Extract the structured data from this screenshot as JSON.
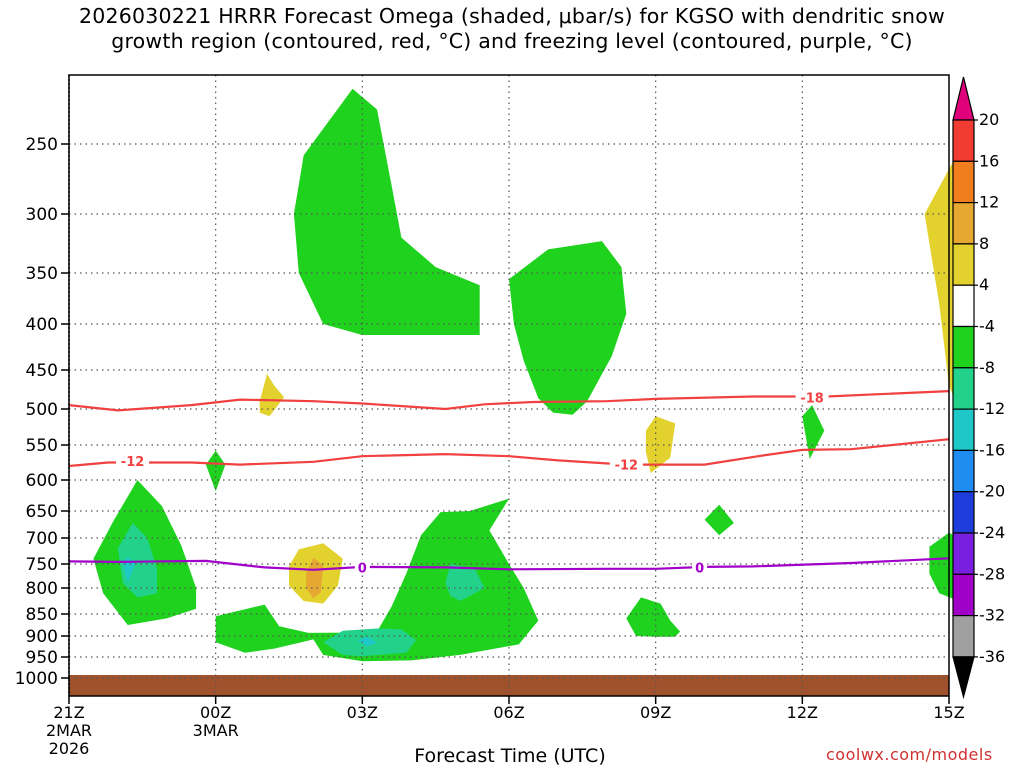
{
  "chart_data": {
    "type": "contour",
    "title_line1": "2026030221 HRRR Forecast Omega (shaded, μbar/s) for KGSO with dendritic snow",
    "title_line2": "growth region (contoured, red, °C) and freezing level (contoured, purple, °C)",
    "xlabel": "Forecast Time (UTC)",
    "credit": "coolwx.com/models",
    "x_ticks": [
      {
        "label": "21Z",
        "sub1": "2MAR",
        "sub2": "2026",
        "hour": 0
      },
      {
        "label": "00Z",
        "sub1": "3MAR",
        "sub2": "",
        "hour": 3
      },
      {
        "label": "03Z",
        "sub1": "",
        "sub2": "",
        "hour": 6
      },
      {
        "label": "06Z",
        "sub1": "",
        "sub2": "",
        "hour": 9
      },
      {
        "label": "09Z",
        "sub1": "",
        "sub2": "",
        "hour": 12
      },
      {
        "label": "12Z",
        "sub1": "",
        "sub2": "",
        "hour": 15
      },
      {
        "label": "15Z",
        "sub1": "",
        "sub2": "",
        "hour": 18
      }
    ],
    "y_ticks": [
      "250",
      "300",
      "350",
      "400",
      "450",
      "500",
      "550",
      "600",
      "650",
      "700",
      "750",
      "800",
      "850",
      "900",
      "950",
      "1000"
    ],
    "y_values": [
      250,
      300,
      350,
      400,
      450,
      500,
      550,
      600,
      650,
      700,
      750,
      800,
      850,
      900,
      950,
      1000
    ],
    "y_range_hpa": [
      200,
      1000
    ],
    "colorbar": {
      "labels": [
        "20",
        "16",
        "12",
        "8",
        "4",
        "-4",
        "-8",
        "-12",
        "-16",
        "-20",
        "-24",
        "-28",
        "-32",
        "-36"
      ],
      "bins": [
        {
          "lo": 20,
          "hi": null,
          "color": "#e0007a"
        },
        {
          "lo": 16,
          "hi": 20,
          "color": "#f03c32"
        },
        {
          "lo": 12,
          "hi": 16,
          "color": "#f07d1e"
        },
        {
          "lo": 8,
          "hi": 12,
          "color": "#e6a830"
        },
        {
          "lo": 4,
          "hi": 8,
          "color": "#e3d22e"
        },
        {
          "lo": -4,
          "hi": 4,
          "color": "#ffffff"
        },
        {
          "lo": -8,
          "hi": -4,
          "color": "#1ed21e"
        },
        {
          "lo": -12,
          "hi": -8,
          "color": "#22d28a"
        },
        {
          "lo": -16,
          "hi": -12,
          "color": "#1ec8c8"
        },
        {
          "lo": -20,
          "hi": -16,
          "color": "#1e8cf0"
        },
        {
          "lo": -24,
          "hi": -20,
          "color": "#1e3cdc"
        },
        {
          "lo": -28,
          "hi": -24,
          "color": "#7a1ee0"
        },
        {
          "lo": -32,
          "hi": -28,
          "color": "#a000c8"
        },
        {
          "lo": -36,
          "hi": -32,
          "color": "#a0a0a0"
        },
        {
          "lo": null,
          "hi": -36,
          "color": "#000000"
        }
      ]
    },
    "contours": [
      {
        "name": "dendritic -18C",
        "color": "#f04040",
        "label": "-18",
        "points": [
          [
            0,
            495
          ],
          [
            1,
            502
          ],
          [
            2.5,
            495
          ],
          [
            3.5,
            488
          ],
          [
            5,
            490
          ],
          [
            6,
            493
          ],
          [
            7.7,
            500
          ],
          [
            8.5,
            494
          ],
          [
            9.5,
            491
          ],
          [
            11,
            490
          ],
          [
            12,
            487
          ],
          [
            14,
            484
          ],
          [
            15.5,
            484
          ],
          [
            18,
            477
          ]
        ]
      },
      {
        "name": "dendritic -12C",
        "color": "#f04040",
        "label": "-12",
        "points": [
          [
            0,
            580
          ],
          [
            0.8,
            575
          ],
          [
            2.5,
            575
          ],
          [
            3.5,
            578
          ],
          [
            5,
            574
          ],
          [
            6,
            566
          ],
          [
            7.7,
            563
          ],
          [
            9,
            566
          ],
          [
            10,
            572
          ],
          [
            11.4,
            578
          ],
          [
            13,
            578
          ],
          [
            14,
            567
          ],
          [
            15,
            557
          ],
          [
            16,
            556
          ],
          [
            18,
            542
          ]
        ]
      },
      {
        "name": "freezing level 0C",
        "color": "#a000c8",
        "label": "0",
        "points": [
          [
            0,
            745
          ],
          [
            1,
            746
          ],
          [
            2.8,
            744
          ],
          [
            4,
            757
          ],
          [
            5,
            762
          ],
          [
            6,
            756
          ],
          [
            7.7,
            757
          ],
          [
            9,
            761
          ],
          [
            11,
            760
          ],
          [
            12,
            760
          ],
          [
            13,
            756
          ],
          [
            14,
            755
          ],
          [
            16,
            748
          ],
          [
            18,
            739
          ]
        ]
      }
    ],
    "contour_labels": [
      {
        "text": "-18",
        "hour": 15.2,
        "p": 485,
        "color": "#f04040"
      },
      {
        "text": "-12",
        "hour": 1.3,
        "p": 573,
        "color": "#f04040"
      },
      {
        "text": "-12",
        "hour": 11.4,
        "p": 578,
        "color": "#f04040"
      },
      {
        "text": "0",
        "hour": 6.0,
        "p": 757,
        "color": "#a000c8"
      },
      {
        "text": "0",
        "hour": 12.9,
        "p": 757,
        "color": "#a000c8"
      }
    ],
    "omega_regions": [
      {
        "color": "#1ed21e",
        "points": [
          [
            4.8,
            258
          ],
          [
            5.8,
            210
          ],
          [
            6.3,
            225
          ],
          [
            6.6,
            280
          ],
          [
            6.8,
            320
          ],
          [
            7.5,
            345
          ],
          [
            8.4,
            362
          ],
          [
            8.4,
            412
          ],
          [
            6.0,
            412
          ],
          [
            5.2,
            400
          ],
          [
            4.7,
            350
          ],
          [
            4.6,
            300
          ]
        ]
      },
      {
        "color": "#1ed21e",
        "points": [
          [
            9.0,
            356
          ],
          [
            9.8,
            330
          ],
          [
            10.9,
            323
          ],
          [
            11.3,
            345
          ],
          [
            11.4,
            390
          ],
          [
            11.1,
            435
          ],
          [
            10.6,
            490
          ],
          [
            10.3,
            508
          ],
          [
            9.9,
            505
          ],
          [
            9.6,
            486
          ],
          [
            9.3,
            440
          ],
          [
            9.1,
            400
          ]
        ]
      },
      {
        "color": "#1ed21e",
        "points": [
          [
            2.8,
            578
          ],
          [
            3.0,
            558
          ],
          [
            3.2,
            578
          ],
          [
            3.0,
            618
          ]
        ]
      },
      {
        "color": "#1ed21e",
        "points": [
          [
            15.0,
            510
          ],
          [
            15.2,
            495
          ],
          [
            15.45,
            530
          ],
          [
            15.15,
            570
          ]
        ]
      },
      {
        "color": "#1ed21e",
        "points": [
          [
            13.0,
            666
          ],
          [
            13.3,
            640
          ],
          [
            13.6,
            672
          ],
          [
            13.3,
            695
          ]
        ]
      },
      {
        "color": "#1ed21e",
        "points": [
          [
            0.9,
            670
          ],
          [
            1.4,
            600
          ],
          [
            1.9,
            642
          ],
          [
            2.3,
            715
          ],
          [
            2.6,
            800
          ],
          [
            2.6,
            840
          ],
          [
            2.0,
            860
          ],
          [
            1.2,
            875
          ],
          [
            0.7,
            810
          ],
          [
            0.5,
            740
          ]
        ]
      },
      {
        "color": "#22d28a",
        "points": [
          [
            1.0,
            720
          ],
          [
            1.3,
            672
          ],
          [
            1.6,
            700
          ],
          [
            1.8,
            760
          ],
          [
            1.8,
            810
          ],
          [
            1.4,
            818
          ],
          [
            1.1,
            790
          ]
        ]
      },
      {
        "color": "#1ec8c8",
        "points": [
          [
            1.1,
            748
          ],
          [
            1.2,
            735
          ],
          [
            1.35,
            750
          ],
          [
            1.2,
            790
          ]
        ]
      },
      {
        "color": "#1ed21e",
        "points": [
          [
            3.0,
            855
          ],
          [
            4.0,
            832
          ],
          [
            4.3,
            878
          ],
          [
            4.9,
            893
          ],
          [
            6.0,
            892
          ],
          [
            6.3,
            890
          ],
          [
            6.6,
            835
          ],
          [
            6.9,
            770
          ],
          [
            7.2,
            695
          ],
          [
            7.6,
            652
          ],
          [
            8.2,
            650
          ],
          [
            9.0,
            630
          ],
          [
            8.6,
            686
          ],
          [
            9.0,
            750
          ],
          [
            9.3,
            800
          ],
          [
            9.6,
            865
          ],
          [
            9.2,
            920
          ],
          [
            8.0,
            945
          ],
          [
            7.0,
            958
          ],
          [
            6.0,
            960
          ],
          [
            5.2,
            945
          ],
          [
            5.0,
            908
          ],
          [
            4.2,
            930
          ],
          [
            3.6,
            940
          ],
          [
            3.0,
            915
          ]
        ]
      },
      {
        "color": "#22d28a",
        "points": [
          [
            7.7,
            790
          ],
          [
            7.8,
            750
          ],
          [
            8.3,
            760
          ],
          [
            8.5,
            800
          ],
          [
            8.0,
            825
          ],
          [
            7.8,
            815
          ]
        ]
      },
      {
        "color": "#22d28a",
        "points": [
          [
            5.2,
            915
          ],
          [
            5.6,
            888
          ],
          [
            6.3,
            883
          ],
          [
            6.8,
            885
          ],
          [
            7.1,
            910
          ],
          [
            6.9,
            940
          ],
          [
            6.0,
            948
          ],
          [
            5.6,
            945
          ]
        ]
      },
      {
        "color": "#1ec8c8",
        "points": [
          [
            5.9,
            910
          ],
          [
            6.1,
            902
          ],
          [
            6.3,
            915
          ],
          [
            6.1,
            925
          ]
        ]
      },
      {
        "color": "#1ed21e",
        "points": [
          [
            11.4,
            860
          ],
          [
            11.7,
            818
          ],
          [
            12.1,
            830
          ],
          [
            12.3,
            865
          ],
          [
            12.5,
            890
          ],
          [
            12.4,
            902
          ],
          [
            12.0,
            902
          ],
          [
            11.6,
            900
          ],
          [
            11.5,
            880
          ]
        ]
      },
      {
        "color": "#1ed21e",
        "points": [
          [
            17.6,
            717
          ],
          [
            18.0,
            690
          ],
          [
            18.2,
            700
          ],
          [
            18.2,
            825
          ],
          [
            17.8,
            810
          ],
          [
            17.6,
            770
          ]
        ]
      },
      {
        "color": "#e3d22e",
        "points": [
          [
            3.9,
            490
          ],
          [
            4.05,
            455
          ],
          [
            4.2,
            470
          ],
          [
            4.4,
            485
          ],
          [
            4.1,
            510
          ],
          [
            3.9,
            505
          ]
        ]
      },
      {
        "color": "#e3d22e",
        "points": [
          [
            11.8,
            530
          ],
          [
            12.0,
            510
          ],
          [
            12.4,
            520
          ],
          [
            12.3,
            568
          ],
          [
            11.9,
            590
          ],
          [
            11.8,
            560
          ]
        ]
      },
      {
        "color": "#e3d22e",
        "points": [
          [
            17.5,
            300
          ],
          [
            18.2,
            255
          ],
          [
            18.2,
            500
          ],
          [
            18.0,
            470
          ],
          [
            17.8,
            380
          ]
        ]
      },
      {
        "color": "#e3d22e",
        "points": [
          [
            4.5,
            755
          ],
          [
            4.7,
            722
          ],
          [
            5.2,
            710
          ],
          [
            5.6,
            740
          ],
          [
            5.5,
            795
          ],
          [
            5.2,
            830
          ],
          [
            4.8,
            825
          ],
          [
            4.5,
            795
          ]
        ]
      },
      {
        "color": "#e6a830",
        "points": [
          [
            4.85,
            770
          ],
          [
            5.0,
            738
          ],
          [
            5.2,
            753
          ],
          [
            5.15,
            808
          ],
          [
            5.0,
            820
          ],
          [
            4.85,
            800
          ]
        ]
      }
    ]
  }
}
